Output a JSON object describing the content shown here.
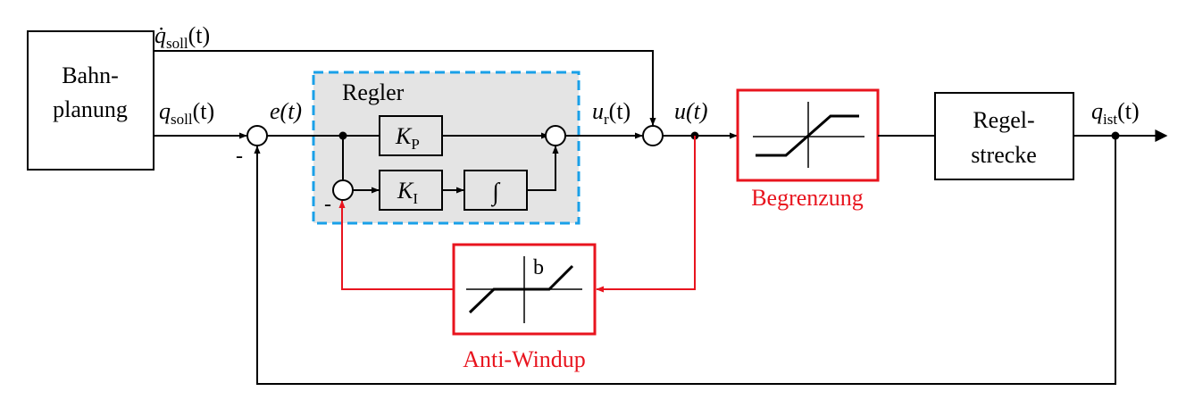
{
  "blocks": {
    "bahnplanung": {
      "line1": "Bahn-",
      "line2": "planung"
    },
    "regler": {
      "label": "Regler"
    },
    "kp": {
      "sym": "K",
      "sub": "P"
    },
    "ki": {
      "sym": "K",
      "sub": "I"
    },
    "integrator": {
      "sym": "∫"
    },
    "begrenzung": {
      "label": "Begrenzung"
    },
    "antiwindup": {
      "label": "Anti-Windup",
      "inner": "b"
    },
    "regelstrecke": {
      "line1": "Regel-",
      "line2": "strecke"
    }
  },
  "signals": {
    "qdot_soll": {
      "sym": "q̇",
      "sub": "soll",
      "arg": "(t)"
    },
    "q_soll": {
      "sym": "q",
      "sub": "soll",
      "arg": "(t)"
    },
    "e": {
      "text": "e(t)"
    },
    "u_r": {
      "sym": "u",
      "sub": "r",
      "arg": "(t)"
    },
    "u": {
      "text": "u(t)"
    },
    "q_ist": {
      "sym": "q",
      "sub": "ist",
      "arg": "(t)"
    }
  },
  "signs": {
    "main_minus": "-",
    "inner_minus": "-"
  },
  "colors": {
    "highlight": "#e8141e",
    "regler_border": "#1aa0e8",
    "regler_fill": "#e4e4e4"
  }
}
